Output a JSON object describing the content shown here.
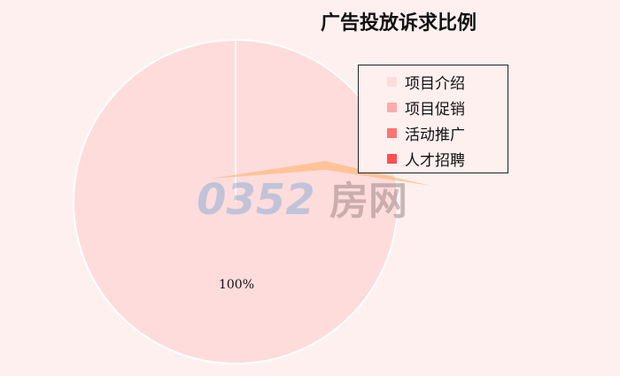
{
  "chart_data": {
    "type": "pie",
    "title": "广告投放诉求比例",
    "categories": [
      "项目介绍",
      "项目促销",
      "活动推广",
      "人才招聘"
    ],
    "values": [
      100,
      0,
      0,
      0
    ],
    "data_labels": [
      "100%"
    ],
    "colors": [
      "#ffdcdc",
      "#ffaaaa",
      "#ff7474",
      "#ff5050"
    ],
    "legend_position": "top-right"
  },
  "watermark": {
    "text": "0352房网"
  }
}
